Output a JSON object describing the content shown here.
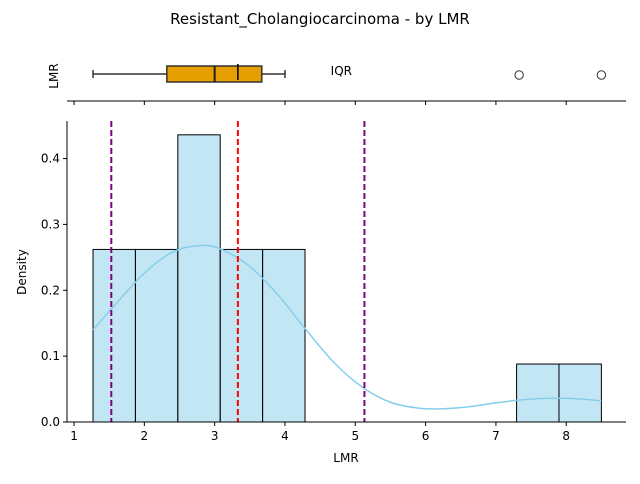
{
  "chart_data": {
    "type": "histogram",
    "title": "Resistant_Cholangiocarcinoma - by LMR",
    "boxplot": {
      "ylabel": "LMR",
      "whisker_low": 1.27,
      "q1": 2.32,
      "median": 3.0,
      "mean": 3.33,
      "q3": 3.67,
      "whisker_high": 4.0,
      "outliers": [
        7.33,
        8.5
      ],
      "annotation": "IQR",
      "annotation_x": 4.65,
      "box_color": "#e69f00"
    },
    "histogram": {
      "xlabel": "LMR",
      "ylabel": "Density",
      "xlim": [
        0.9,
        8.85
      ],
      "ylim": [
        0,
        0.457
      ],
      "xticks": [
        1,
        2,
        3,
        4,
        5,
        6,
        7,
        8
      ],
      "yticks": [
        0.0,
        0.1,
        0.2,
        0.3,
        0.4
      ],
      "bar_color": "#87ceeb",
      "bins": [
        {
          "x0": 1.27,
          "x1": 1.873,
          "density": 0.262
        },
        {
          "x0": 1.873,
          "x1": 2.476,
          "density": 0.262
        },
        {
          "x0": 2.476,
          "x1": 3.079,
          "density": 0.436
        },
        {
          "x0": 3.079,
          "x1": 3.682,
          "density": 0.262
        },
        {
          "x0": 3.682,
          "x1": 4.285,
          "density": 0.262
        },
        {
          "x0": 7.294,
          "x1": 7.897,
          "density": 0.088
        },
        {
          "x0": 7.897,
          "x1": 8.5,
          "density": 0.088
        }
      ],
      "kde": {
        "color": "#87ceeb",
        "x": [
          1.27,
          1.6,
          2.0,
          2.4,
          2.8,
          3.1,
          3.5,
          3.9,
          4.3,
          4.7,
          5.1,
          5.5,
          5.9,
          6.2,
          6.6,
          7.0,
          7.4,
          7.8,
          8.2,
          8.5
        ],
        "y": [
          0.14,
          0.18,
          0.226,
          0.258,
          0.268,
          0.262,
          0.236,
          0.193,
          0.14,
          0.09,
          0.053,
          0.03,
          0.021,
          0.02,
          0.023,
          0.029,
          0.034,
          0.036,
          0.035,
          0.032
        ]
      },
      "vlines": [
        {
          "x": 1.53,
          "color": "#800080",
          "role": "lower"
        },
        {
          "x": 3.33,
          "color": "#ff0000",
          "role": "mean"
        },
        {
          "x": 5.13,
          "color": "#800080",
          "role": "upper"
        }
      ]
    }
  }
}
